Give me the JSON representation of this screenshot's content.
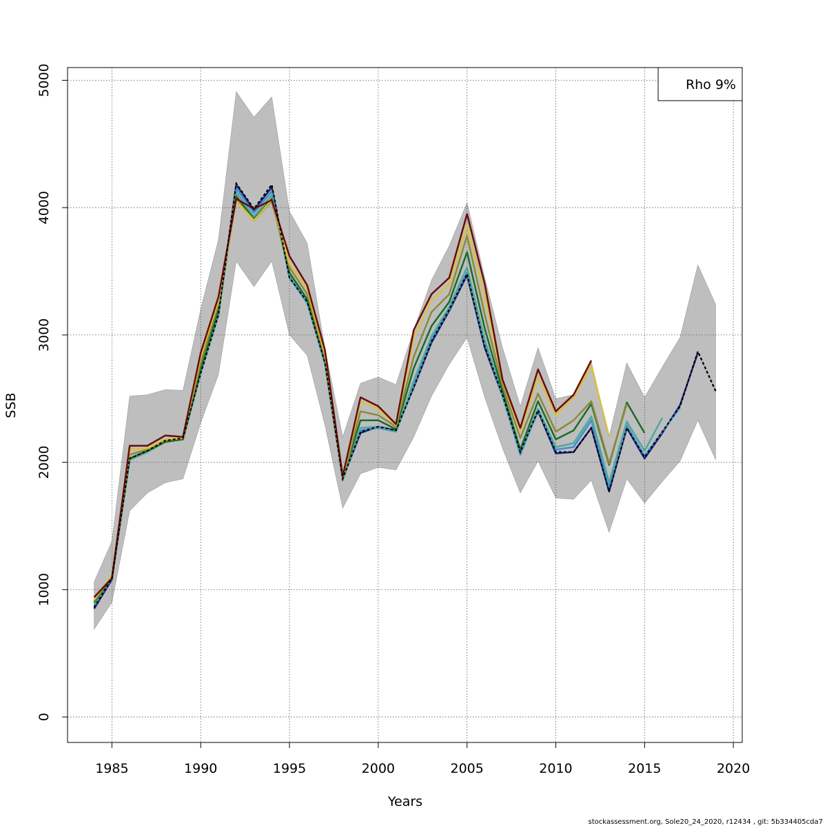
{
  "chart_data": {
    "type": "line",
    "xlabel": "Years",
    "ylabel": "SSB",
    "xlim": [
      1982.5,
      2020.5
    ],
    "ylim": [
      -200,
      5100
    ],
    "xticks": [
      1985,
      1990,
      1995,
      2000,
      2005,
      2010,
      2015,
      2020
    ],
    "yticks": [
      0,
      1000,
      2000,
      3000,
      4000,
      5000
    ],
    "grid": true,
    "legend_text": "Rho 9%",
    "legend_position": "top-right",
    "confidence_band": {
      "color": "#bebebe",
      "x": [
        1984,
        1985,
        1986,
        1987,
        1988,
        1989,
        1990,
        1991,
        1992,
        1993,
        1994,
        1995,
        1996,
        1997,
        1998,
        1999,
        2000,
        2001,
        2002,
        2003,
        2004,
        2005,
        2006,
        2007,
        2008,
        2009,
        2010,
        2011,
        2012,
        2013,
        2014,
        2015,
        2016,
        2017,
        2018,
        2019
      ],
      "upper": [
        1060,
        1380,
        2520,
        2530,
        2570,
        2565,
        3200,
        3750,
        4910,
        4710,
        4870,
        3970,
        3720,
        2890,
        2200,
        2620,
        2670,
        2610,
        3040,
        3430,
        3700,
        4040,
        3450,
        2900,
        2440,
        2900,
        2500,
        2530,
        2790,
        2200,
        2780,
        2510,
        2750,
        2980,
        3550,
        3240
      ],
      "lower": [
        690,
        900,
        1620,
        1760,
        1840,
        1870,
        2310,
        2690,
        3580,
        3380,
        3580,
        3000,
        2840,
        2290,
        1640,
        1910,
        1960,
        1940,
        2200,
        2520,
        2770,
        2980,
        2510,
        2110,
        1760,
        2010,
        1720,
        1710,
        1860,
        1450,
        1870,
        1680,
        1850,
        2010,
        2330,
        2020
      ]
    },
    "series": [
      {
        "color": "#000000",
        "dashed": true,
        "x": [
          1984,
          1985,
          1986,
          1987,
          1988,
          1989,
          1990,
          1991,
          1992,
          1993,
          1994,
          1995,
          1996,
          1997,
          1998,
          1999,
          2000,
          2001,
          2002,
          2003,
          2004,
          2005,
          2006,
          2007,
          2008,
          2009,
          2010,
          2011,
          2012,
          2013,
          2014,
          2015,
          2016,
          2017,
          2018,
          2019
        ],
        "values": [
          860,
          1090,
          2030,
          2090,
          2170,
          2190,
          2700,
          3160,
          4190,
          3990,
          4180,
          3450,
          3260,
          2780,
          1870,
          2240,
          2280,
          2250,
          2590,
          2950,
          3200,
          3480,
          2910,
          2530,
          2080,
          2410,
          2080,
          2080,
          2270,
          1770,
          2270,
          2040,
          2240,
          2440,
          2870,
          2560
        ]
      },
      {
        "color": "#1f1f7a",
        "dashed": false,
        "x": [
          1984,
          1985,
          1986,
          1987,
          1988,
          1989,
          1990,
          1991,
          1992,
          1993,
          1994,
          1995,
          1996,
          1997,
          1998,
          1999,
          2000,
          2001,
          2002,
          2003,
          2004,
          2005,
          2006,
          2007,
          2008,
          2009,
          2010,
          2011,
          2012,
          2013,
          2014,
          2015,
          2016,
          2017,
          2018
        ],
        "values": [
          850,
          1080,
          2030,
          2090,
          2170,
          2190,
          2700,
          3160,
          4180,
          3980,
          4160,
          3450,
          3260,
          2780,
          1870,
          2230,
          2280,
          2250,
          2590,
          2940,
          3190,
          3470,
          2900,
          2520,
          2080,
          2400,
          2070,
          2080,
          2270,
          1770,
          2270,
          2030,
          2230,
          2450,
          2860
        ]
      },
      {
        "color": "#3a8fd6",
        "dashed": false,
        "x": [
          1984,
          1985,
          1986,
          1987,
          1988,
          1989,
          1990,
          1991,
          1992,
          1993,
          1994,
          1995,
          1996,
          1997,
          1998,
          1999,
          2000,
          2001,
          2002,
          2003,
          2004,
          2005,
          2006,
          2007,
          2008,
          2009,
          2010,
          2011,
          2012,
          2013,
          2014,
          2015,
          2016,
          2017
        ],
        "values": [
          870,
          1090,
          2020,
          2080,
          2160,
          2180,
          2700,
          3160,
          4150,
          3960,
          4130,
          3450,
          3250,
          2770,
          1860,
          2250,
          2270,
          2240,
          2600,
          2960,
          3200,
          3490,
          2930,
          2520,
          2060,
          2410,
          2100,
          2120,
          2330,
          1810,
          2290,
          2050,
          2240,
          2430
        ]
      },
      {
        "color": "#4fa89a",
        "dashed": false,
        "x": [
          1984,
          1985,
          1986,
          1987,
          1988,
          1989,
          1990,
          1991,
          1992,
          1993,
          1994,
          1995,
          1996,
          1997,
          1998,
          1999,
          2000,
          2001,
          2002,
          2003,
          2004,
          2005,
          2006,
          2007,
          2008,
          2009,
          2010,
          2011,
          2012,
          2013,
          2014,
          2015,
          2016
        ],
        "values": [
          880,
          1100,
          2020,
          2080,
          2160,
          2180,
          2700,
          3170,
          4120,
          3930,
          4100,
          3470,
          3260,
          2780,
          1860,
          2270,
          2280,
          2240,
          2640,
          2990,
          3220,
          3530,
          2960,
          2530,
          2080,
          2420,
          2120,
          2150,
          2360,
          1840,
          2320,
          2090,
          2350
        ]
      },
      {
        "color": "#1a6b2a",
        "dashed": false,
        "x": [
          1984,
          1985,
          1986,
          1987,
          1988,
          1989,
          1990,
          1991,
          1992,
          1993,
          1994,
          1995,
          1996,
          1997,
          1998,
          1999,
          2000,
          2001,
          2002,
          2003,
          2004,
          2005,
          2006,
          2007,
          2008,
          2009,
          2010,
          2011,
          2012,
          2013,
          2014,
          2015
        ],
        "values": [
          900,
          1100,
          2030,
          2090,
          2160,
          2180,
          2730,
          3200,
          4090,
          3910,
          4070,
          3490,
          3280,
          2800,
          1880,
          2330,
          2330,
          2260,
          2740,
          3070,
          3260,
          3650,
          3050,
          2560,
          2100,
          2480,
          2180,
          2250,
          2460,
          1980,
          2470,
          2230
        ]
      },
      {
        "color": "#8a8a3a",
        "dashed": false,
        "x": [
          1984,
          1985,
          1986,
          1987,
          1988,
          1989,
          1990,
          1991,
          1992,
          1993,
          1994,
          1995,
          1996,
          1997,
          1998,
          1999,
          2000,
          2001,
          2002,
          2003,
          2004,
          2005,
          2006,
          2007,
          2008,
          2009,
          2010,
          2011,
          2012,
          2013,
          2014
        ],
        "values": [
          910,
          1110,
          2060,
          2100,
          2170,
          2190,
          2780,
          3240,
          4060,
          3900,
          4050,
          3530,
          3320,
          2820,
          1870,
          2400,
          2370,
          2280,
          2830,
          3180,
          3320,
          3780,
          3160,
          2600,
          2190,
          2540,
          2240,
          2330,
          2480,
          1990,
          2460
        ]
      },
      {
        "color": "#d8c040",
        "dashed": false,
        "x": [
          1984,
          1985,
          1986,
          1987,
          1988,
          1989,
          1990,
          1991,
          1992,
          1993,
          1994,
          1995,
          1996,
          1997,
          1998,
          1999,
          2000,
          2001,
          2002,
          2003,
          2004,
          2005,
          2006,
          2007,
          2008,
          2009,
          2010,
          2011,
          2012,
          2013
        ],
        "values": [
          920,
          1110,
          2100,
          2110,
          2180,
          2190,
          2830,
          3270,
          4050,
          3900,
          4060,
          3560,
          3360,
          2850,
          1880,
          2480,
          2420,
          2290,
          2980,
          3270,
          3400,
          3860,
          3310,
          2640,
          2250,
          2670,
          2370,
          2510,
          2760,
          2200
        ]
      },
      {
        "color": "#6b0a0a",
        "dashed": false,
        "x": [
          1984,
          1985,
          1986,
          1987,
          1988,
          1989,
          1990,
          1991,
          1992,
          1993,
          1994,
          1995,
          1996,
          1997,
          1998,
          1999,
          2000,
          2001,
          2002,
          2003,
          2004,
          2005,
          2006,
          2007,
          2008,
          2009,
          2010,
          2011,
          2012
        ],
        "values": [
          940,
          1090,
          2130,
          2130,
          2210,
          2200,
          2860,
          3300,
          4070,
          3990,
          4060,
          3620,
          3390,
          2880,
          1890,
          2510,
          2440,
          2300,
          3040,
          3320,
          3450,
          3950,
          3400,
          2650,
          2270,
          2730,
          2400,
          2530,
          2800
        ]
      }
    ]
  },
  "footer": "stockassessment.org, Sole20_24_2020, r12434 , git: 5b334405cda7"
}
